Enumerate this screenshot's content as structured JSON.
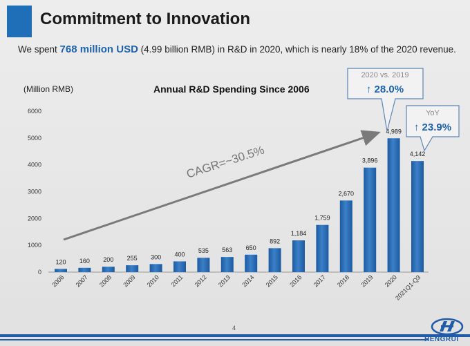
{
  "page": {
    "title": "Commitment to Innovation",
    "subtitle_pre": "We spent ",
    "subtitle_highlight": "768 million USD",
    "subtitle_post": " (4.99 billion RMB) in R&D in 2020, which is nearly 18% of the 2020 revenue.",
    "page_number": "4",
    "logo_text": "HENGRUI"
  },
  "colors": {
    "accent": "#1f6fb8",
    "bar": "#2a6db5",
    "callout_text": "#1d63ad"
  },
  "chart_data": {
    "type": "bar",
    "title": "Annual R&D Spending Since 2006",
    "ylabel": "(Million RMB)",
    "xlabel": "",
    "ylim": [
      0,
      6000
    ],
    "yticks": [
      0,
      1000,
      2000,
      3000,
      4000,
      5000,
      6000
    ],
    "ytick_labels": [
      "0",
      "1000",
      "2000",
      "3000",
      "4000",
      "5000",
      "6000"
    ],
    "categories": [
      "2006",
      "2007",
      "2008",
      "2009",
      "2010",
      "2011",
      "2012",
      "2013",
      "2014",
      "2015",
      "2016",
      "2017",
      "2018",
      "2019",
      "2020",
      "2021Q1-Q3"
    ],
    "values": [
      120,
      160,
      200,
      255,
      300,
      400,
      535,
      563,
      650,
      892,
      1184,
      1759,
      2670,
      3896,
      4989,
      4142
    ],
    "value_labels": [
      "120",
      "160",
      "200",
      "255",
      "300",
      "400",
      "535",
      "563",
      "650",
      "892",
      "1,184",
      "1,759",
      "2,670",
      "3,896",
      "4,989",
      "4,142"
    ],
    "grid": false,
    "annotations": {
      "cagr": "CAGR=~30.5%",
      "callout1_label": "2020 vs. 2019",
      "callout1_value": "↑ 28.0%",
      "callout2_label": "YoY",
      "callout2_value": "↑ 23.9%"
    }
  }
}
